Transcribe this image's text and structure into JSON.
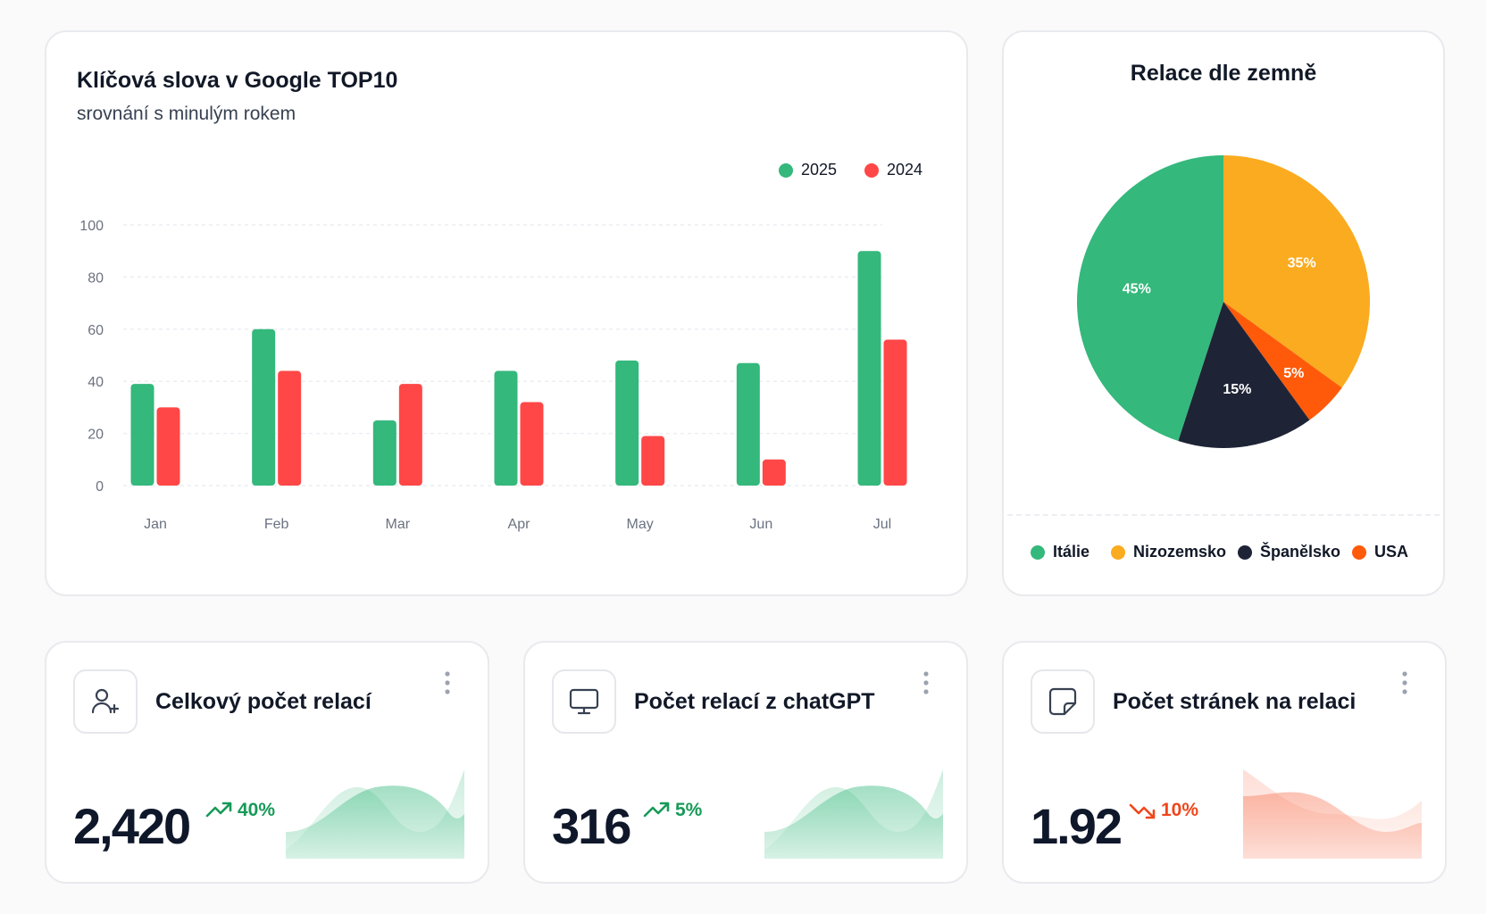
{
  "keywords_card": {
    "title": "Klíčová slova v Google TOP10",
    "subtitle": "srovnání s minulým rokem"
  },
  "sessions_card": {
    "title": "Relace dle zemně"
  },
  "colors": {
    "green": "#34b87c",
    "red": "#ff4747",
    "orange": "#fbab1f",
    "navy": "#1e2436",
    "orange_red": "#ff5a0a",
    "up": "#179a58",
    "down": "#f0461c"
  },
  "chart_data": [
    {
      "type": "bar",
      "categories": [
        "Jan",
        "Feb",
        "Mar",
        "Apr",
        "May",
        "Jun",
        "Jul"
      ],
      "series": [
        {
          "name": "2025",
          "values": [
            39,
            60,
            25,
            44,
            48,
            47,
            90
          ]
        },
        {
          "name": "2024",
          "values": [
            30,
            44,
            39,
            32,
            19,
            10,
            56
          ]
        }
      ],
      "yticks": [
        "0",
        "20",
        "40",
        "60",
        "80",
        "100"
      ],
      "ylim": [
        0,
        100
      ],
      "legend": "top-right",
      "grid": true
    },
    {
      "type": "pie",
      "labels": [
        "Itálie",
        "Nizozemsko",
        "Španělsko",
        "USA"
      ],
      "values": [
        45,
        35,
        15,
        5
      ],
      "value_labels": [
        "45%",
        "35%",
        "15%",
        "5%"
      ],
      "legend": "bottom"
    }
  ],
  "kpis": [
    {
      "title": "Celkový počet relací",
      "icon": "user-plus-icon",
      "value": "2,420",
      "delta": "40%",
      "trend": "up"
    },
    {
      "title": "Počet relací z chatGPT",
      "icon": "monitor-icon",
      "value": "316",
      "delta": "5%",
      "trend": "up"
    },
    {
      "title": "Počet stránek na relaci",
      "icon": "sticky-note-icon",
      "value": "1.92",
      "delta": "10%",
      "trend": "down"
    }
  ]
}
